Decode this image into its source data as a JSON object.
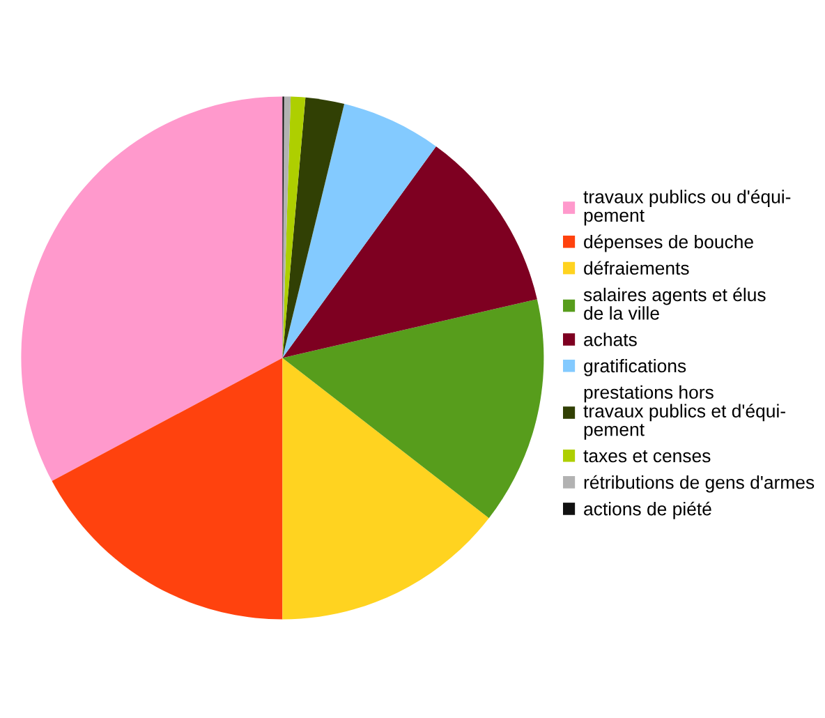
{
  "chart_data": {
    "type": "pie",
    "categories": [
      "travaux publics ou d'équi-\npement",
      "dépenses de bouche",
      "défraiements",
      "salaires agents et élus\nde la ville",
      "achats",
      "gratifications",
      "prestations hors\ntravaux publics et d'équi-\npement",
      "taxes et censes",
      "rétributions de gens d'armes",
      "actions de piété"
    ],
    "values": [
      32.8,
      17.2,
      14.5,
      14.1,
      11.4,
      6.2,
      2.4,
      0.9,
      0.4,
      0.1
    ],
    "colors": [
      "#ff99cc",
      "#ff420e",
      "#ffd320",
      "#579d1c",
      "#7e0021",
      "#83caff",
      "#314004",
      "#aecf00",
      "#b2b2b2",
      "#111111"
    ],
    "legend": "right"
  }
}
